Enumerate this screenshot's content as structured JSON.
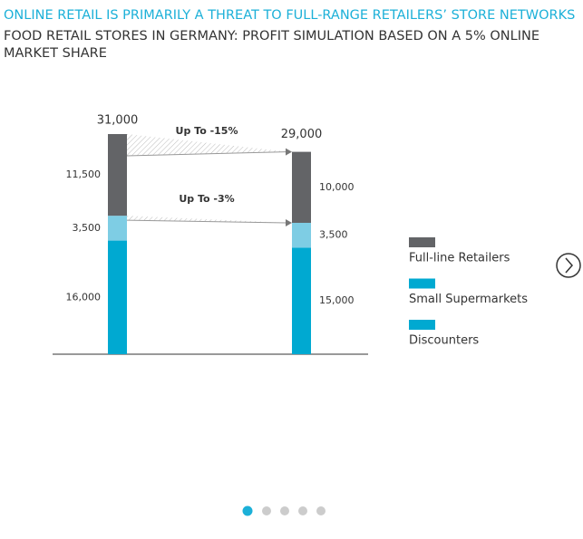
{
  "header": {
    "title": "ONLINE RETAIL IS PRIMARILY A THREAT TO FULL-RANGE RETAILERS’ STORE NETWORKS",
    "subtitle": "FOOD RETAIL STORES IN GERMANY: PROFIT SIMULATION BASED ON A 5% ONLINE MARKET SHARE"
  },
  "chart_data": {
    "type": "stacked_bar",
    "categories": [
      null,
      null
    ],
    "totals": [
      {
        "value": 31000,
        "label": "31,000"
      },
      {
        "value": 29000,
        "label": "29,000"
      }
    ],
    "series": [
      {
        "name": "Full-line Retailers",
        "color": "#636467",
        "values": [
          11500,
          10000
        ],
        "value_labels": [
          "11,500",
          "10,000"
        ]
      },
      {
        "name": "Small Supermarkets",
        "color": "#7ecde4",
        "values": [
          3500,
          3500
        ],
        "value_labels": [
          "3,500",
          "3,500"
        ]
      },
      {
        "name": "Discounters",
        "color": "#00a9d1",
        "values": [
          16000,
          15000
        ],
        "value_labels": [
          "16,000",
          "15,000"
        ]
      }
    ],
    "annotations": [
      "Up To -15%",
      "Up To -3%"
    ],
    "legend": "right"
  }
}
